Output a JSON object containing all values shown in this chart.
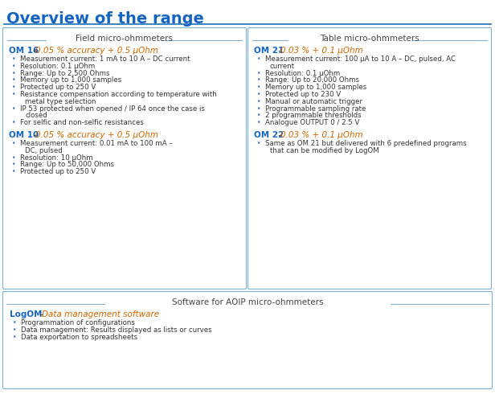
{
  "title": "Overview of the range",
  "title_color": "#1565C0",
  "title_fontsize": 14,
  "divider_color": "#1E6DB0",
  "field_section_title": "Field micro-ohmmeters",
  "table_section_title": "Table micro-ohmmeters",
  "software_section_title": "Software for AOIP micro-ohmmeters",
  "om16_bold": "OM 16",
  "om16_dash": " – ",
  "om16_italic": "0.05 % accuracy + 0.5 µOhm",
  "om16_bullets": [
    "Measurement current: 1 mA to 10 A – DC current",
    "Resolution: 0.1 µOhm",
    "Range: Up to 2,500 Ohms",
    "Memory up to 1,000 samples",
    "Protected up to 250 V",
    "Resistance compensation according to temperature with",
    "  metal type selection",
    "IP 53 protected when opened / IP 64 once the case is",
    "  closed",
    "For selfic and non-selfic resistances"
  ],
  "om10_bold": "OM 10",
  "om10_dash": " – ",
  "om10_italic": "0.05 % accuracy + 0.5 µOhm",
  "om10_bullets": [
    "Measurement current: 0.01 mA to 100 mA –",
    "  DC, pulsed",
    "Resolution: 10 µOhm",
    "Range: Up to 50,000 Ohms",
    "Protected up to 250 V"
  ],
  "om21_bold": "OM 21",
  "om21_dash": " – ",
  "om21_italic": "0.03 % + 0.1 µOhm",
  "om21_bullets": [
    "Measurement current: 100 µA to 10 A – DC, pulsed, AC",
    "  current",
    "Resolution: 0.1 µOhm",
    "Range: Up to 20,000 Ohms",
    "Memory up to 1,000 samples",
    "Protected up to 230 V",
    "Manual or automatic trigger",
    "Programmable sampling rate",
    "2 programmable thresholds",
    "Analogue OUTPUT 0 / 2.5 V"
  ],
  "om22_bold": "OM 22",
  "om22_dash": " – ",
  "om22_italic": "0.03 % + 0.1 µOhm",
  "om22_bullets": [
    "Same as OM 21 but delivered with 6 predefined programs",
    "  that can be modified by LogOM"
  ],
  "logom_bold": "LogOM",
  "logom_dash": " – ",
  "logom_italic": "Data management software",
  "logom_bullets": [
    "Programmation of configurations",
    "Data management: Results displayed as lists or curves",
    "Data exportation to spreadsheets"
  ],
  "blue_bold": "#1565C0",
  "orange_italic": "#CC6600",
  "bullet_color": "#4472C4",
  "text_color": "#333333",
  "box_border_color": "#7BAFD4",
  "section_header_color": "#444444",
  "background_color": "#FFFFFF",
  "fig_w": 6.16,
  "fig_h": 4.9,
  "dpi": 100
}
